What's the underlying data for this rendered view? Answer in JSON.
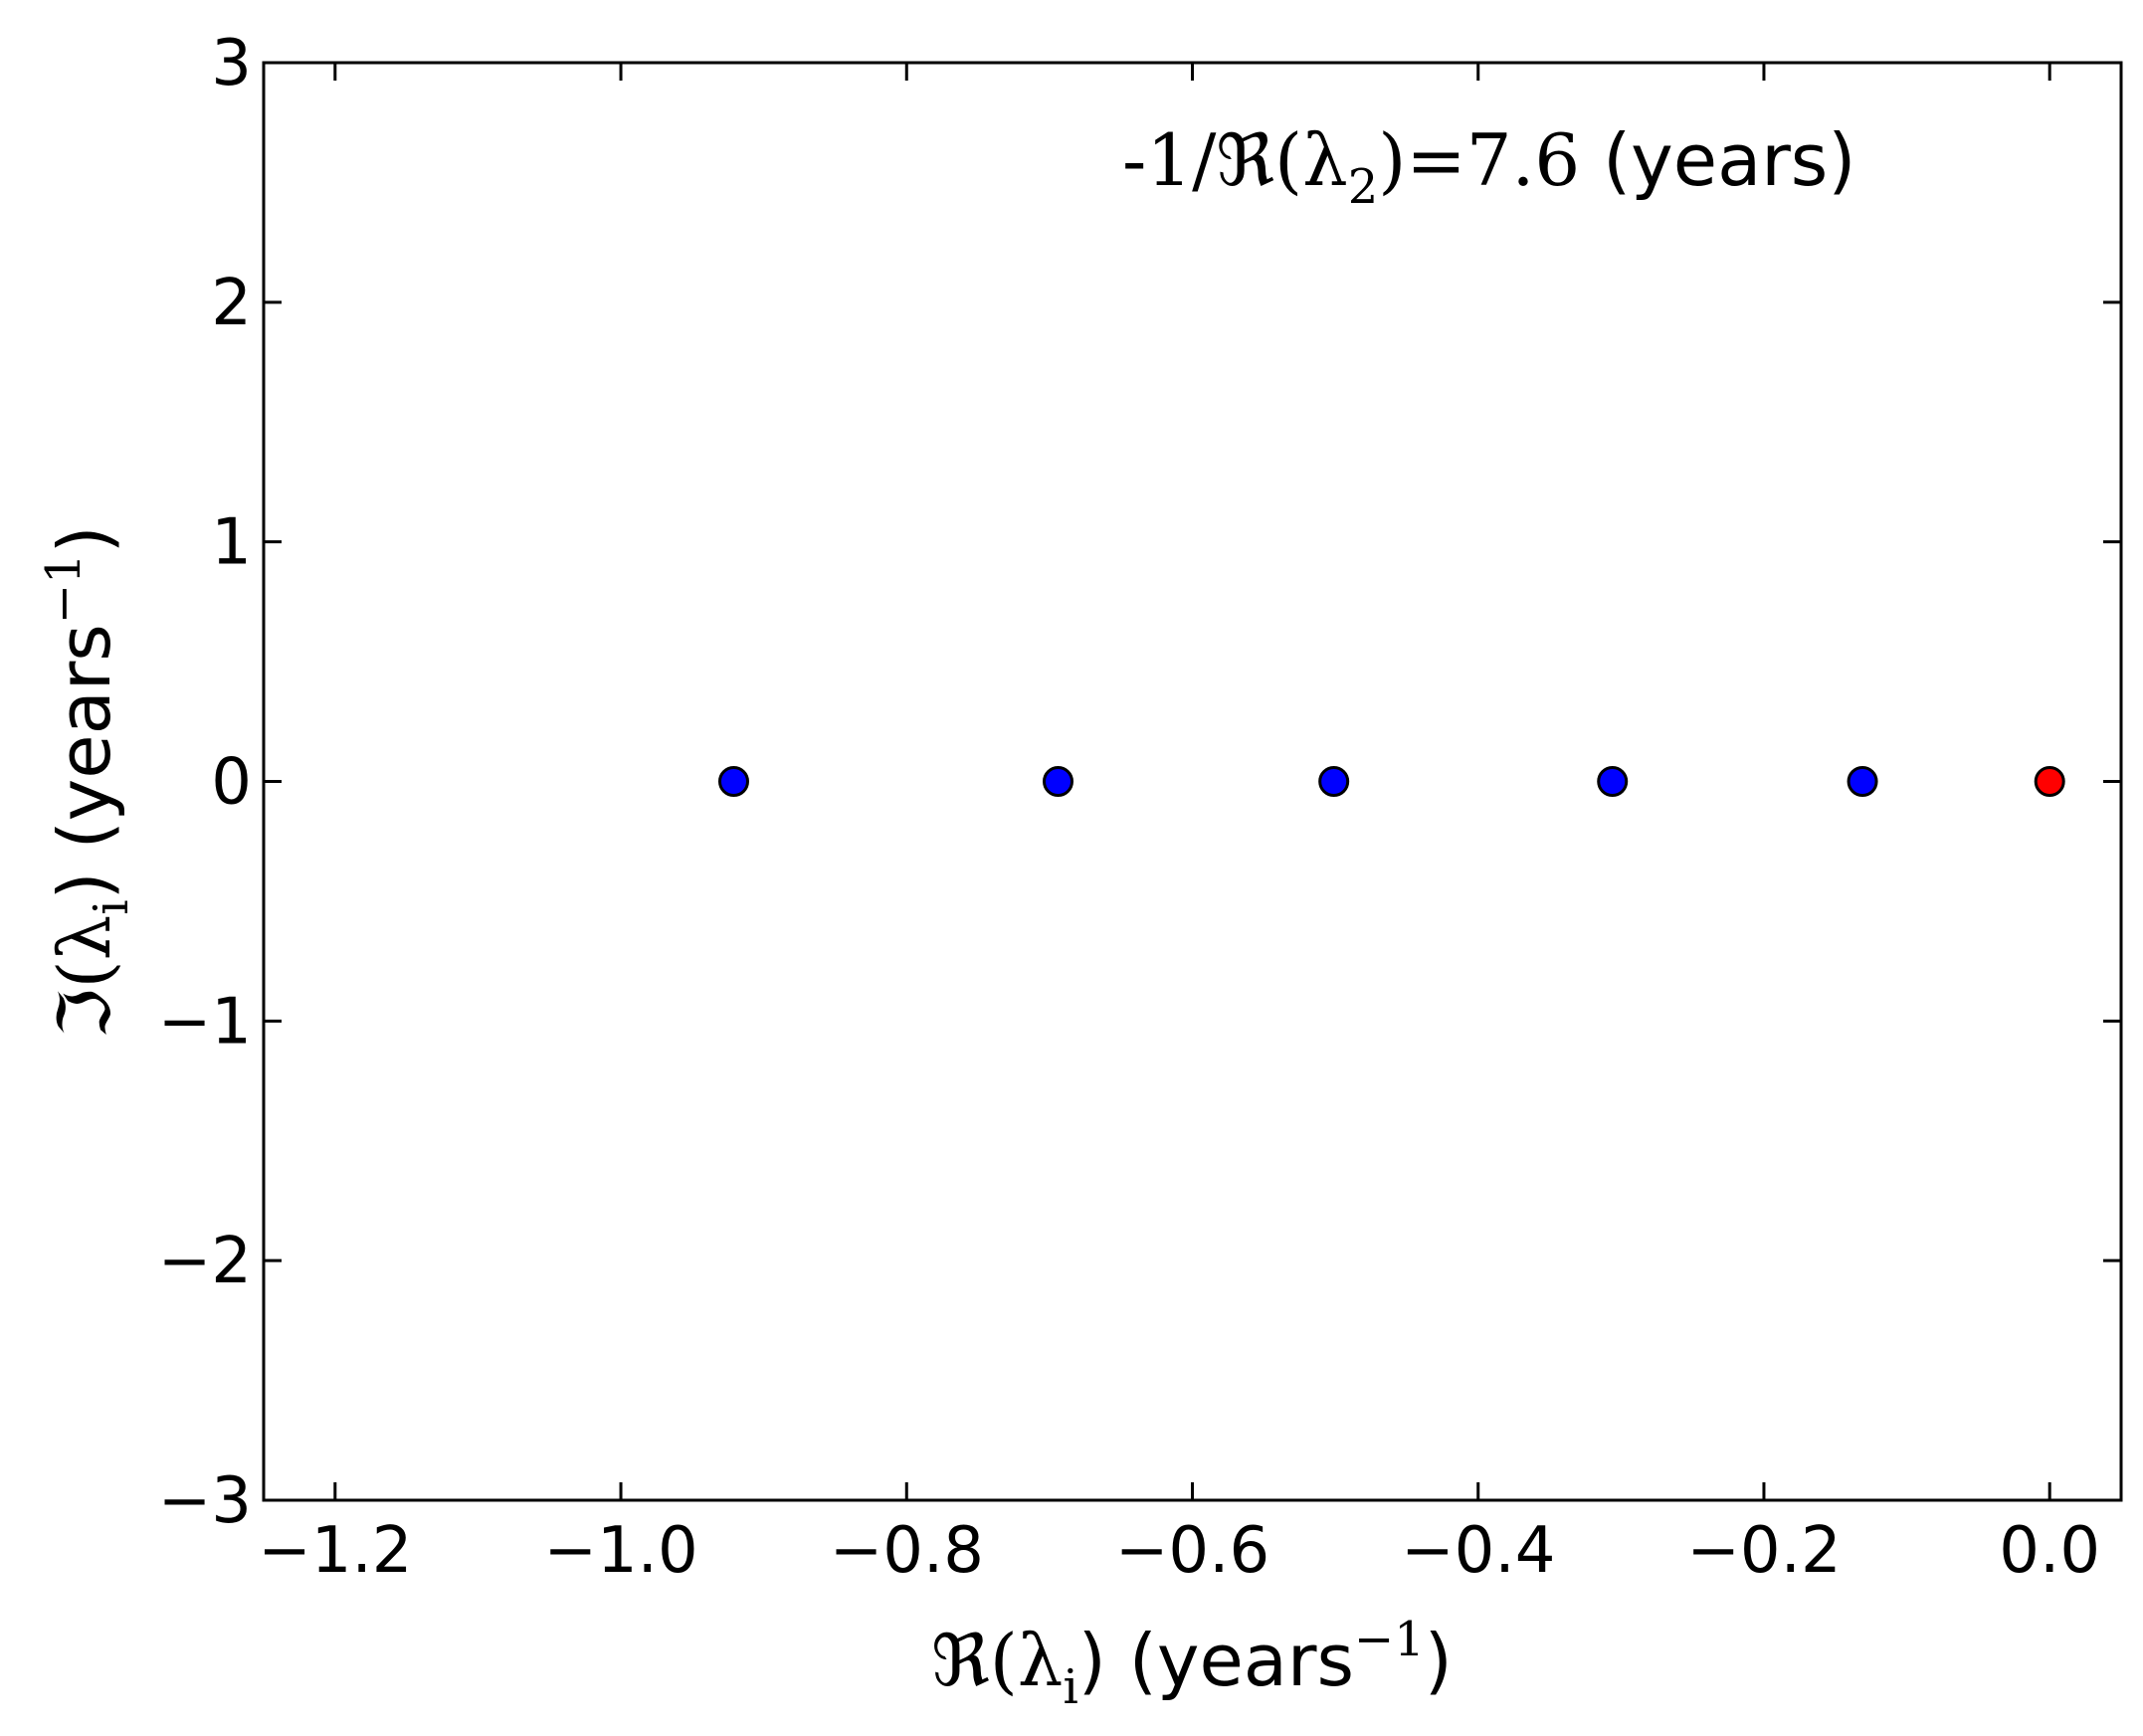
{
  "chart_data": {
    "type": "scatter",
    "title": "",
    "xlabel": {
      "prefix": "ℜ(λ",
      "sub": "i",
      "middle": ") (years",
      "sup": "−1",
      "suffix": ")"
    },
    "ylabel": {
      "prefix": "ℑ(λ",
      "sub": "i",
      "middle": ") (years",
      "sup": "−1",
      "suffix": ")"
    },
    "xlim": [
      -1.25,
      0.05
    ],
    "ylim": [
      -3,
      3
    ],
    "xticks": [
      -1.2,
      -1.0,
      -0.8,
      -0.6,
      -0.4,
      -0.2,
      0.0
    ],
    "xtick_labels": [
      "−1.2",
      "−1.0",
      "−0.8",
      "−0.6",
      "−0.4",
      "−0.2",
      "0.0"
    ],
    "yticks": [
      -3,
      -2,
      -1,
      0,
      1,
      2,
      3
    ],
    "ytick_labels": [
      "−3",
      "−2",
      "−1",
      "0",
      "1",
      "2",
      "3"
    ],
    "grid": false,
    "series": [
      {
        "color": "#0000ff",
        "points": [
          {
            "x": -0.921,
            "y": 0
          },
          {
            "x": -0.694,
            "y": 0
          },
          {
            "x": -0.501,
            "y": 0
          },
          {
            "x": -0.306,
            "y": 0
          },
          {
            "x": -0.131,
            "y": 0
          }
        ]
      },
      {
        "color": "#ff0000",
        "points": [
          {
            "x": 0.0,
            "y": 0
          }
        ]
      }
    ],
    "annotation": {
      "prefix": "-1/ℜ(λ",
      "sub": "2",
      "middle": ")=7.6",
      "suffix": " (years)",
      "position": "top-right"
    }
  }
}
